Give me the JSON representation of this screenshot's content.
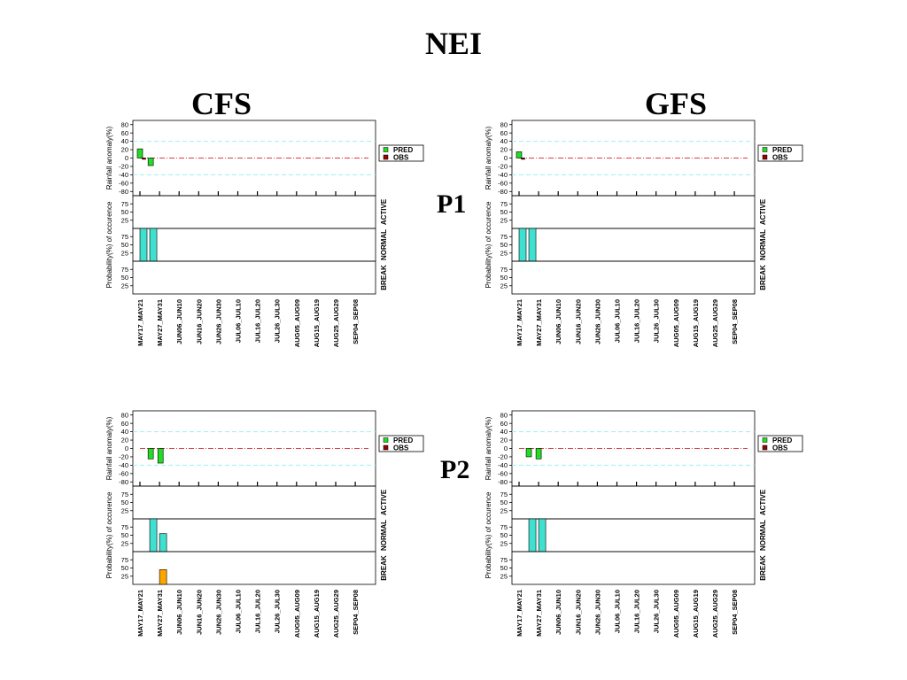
{
  "title": "NEI",
  "columns": [
    "CFS",
    "GFS"
  ],
  "rows": [
    "P1",
    "P2"
  ],
  "colors": {
    "pred": "#22dd22",
    "obs": "#990000",
    "active": "#40e0d0",
    "normal": "#40e0d0",
    "break": "#ffa500",
    "dashed_ref": "#a0eef8",
    "zero_line": "#cc0000"
  },
  "chart_data": [
    {
      "id": "cfs-p1",
      "model": "CFS",
      "period": "P1",
      "type": "bar",
      "ylabel_top": "Rainfall anomaly(%)",
      "ylabel_bottom": "Probability(%) of occurence",
      "yticks_top": [
        "80",
        "60",
        "40",
        "20",
        "0",
        "-20",
        "-40",
        "-60",
        "-80"
      ],
      "ylim_top": [
        -90,
        90
      ],
      "ref_lines": [
        40,
        -40
      ],
      "yticks_bottom": [
        "75",
        "50",
        "25"
      ],
      "categories": [
        "MAY17_MAY21",
        "MAY27_MAY31",
        "JUN06_JUN10",
        "JUN16_JUN20",
        "JUN26_JUN30",
        "JUL06_JUL10",
        "JUL16_JUL20",
        "JUL26_JUL30",
        "AUG05_AUG09",
        "AUG15_AUG19",
        "AUG25_AUG29",
        "SEP04_SEP08"
      ],
      "legend": [
        "PRED",
        "OBS"
      ],
      "prob_labels": [
        "ACTIVE",
        "NORMAL",
        "BREAK"
      ],
      "series": [
        {
          "name": "PRED",
          "bars": [
            {
              "x": 0.0,
              "value": 22
            },
            {
              "x": 0.55,
              "value": -18
            }
          ]
        },
        {
          "name": "OBS",
          "bars": [
            {
              "x": 0.25,
              "value": -3
            }
          ]
        }
      ],
      "probabilities": {
        "active": [],
        "normal": [
          {
            "x": 0.0,
            "value": 100
          },
          {
            "x": 0.5,
            "value": 100
          }
        ],
        "break": []
      }
    },
    {
      "id": "gfs-p1",
      "model": "GFS",
      "period": "P1",
      "type": "bar",
      "ylabel_top": "Rainfall anomaly(%)",
      "ylabel_bottom": "Probability(%) of occurence",
      "yticks_top": [
        "80",
        "60",
        "40",
        "20",
        "0",
        "-20",
        "-40",
        "-60",
        "-80"
      ],
      "ylim_top": [
        -90,
        90
      ],
      "ref_lines": [
        40,
        -40
      ],
      "yticks_bottom": [
        "75",
        "50",
        "25"
      ],
      "categories": [
        "MAY17_MAY21",
        "MAY27_MAY31",
        "JUN06_JUN10",
        "JUN16_JUN20",
        "JUN26_JUN30",
        "JUL06_JUL10",
        "JUL16_JUL20",
        "JUL26_JUL30",
        "AUG05_AUG09",
        "AUG15_AUG19",
        "AUG25_AUG29",
        "SEP04_SEP08"
      ],
      "legend": [
        "PRED",
        "OBS"
      ],
      "prob_labels": [
        "ACTIVE",
        "NORMAL",
        "BREAK"
      ],
      "series": [
        {
          "name": "PRED",
          "bars": [
            {
              "x": 0.0,
              "value": 15
            }
          ]
        },
        {
          "name": "OBS",
          "bars": [
            {
              "x": 0.25,
              "value": -3
            }
          ]
        }
      ],
      "probabilities": {
        "active": [],
        "normal": [
          {
            "x": 0.0,
            "value": 100
          },
          {
            "x": 0.5,
            "value": 100
          }
        ],
        "break": []
      }
    },
    {
      "id": "cfs-p2",
      "model": "CFS",
      "period": "P2",
      "type": "bar",
      "ylabel_top": "Rainfall anomaly(%)",
      "ylabel_bottom": "Probability(%) of occurence",
      "yticks_top": [
        "80",
        "60",
        "40",
        "20",
        "0",
        "-20",
        "-40",
        "-60",
        "-80"
      ],
      "ylim_top": [
        -90,
        90
      ],
      "ref_lines": [
        40,
        -40
      ],
      "yticks_bottom": [
        "75",
        "50",
        "25"
      ],
      "categories": [
        "MAY17_MAY21",
        "MAY27_MAY31",
        "JUN06_JUN10",
        "JUN16_JUN20",
        "JUN26_JUN30",
        "JUL06_JUL10",
        "JUL16_JUL20",
        "JUL26_JUL30",
        "AUG05_AUG09",
        "AUG15_AUG19",
        "AUG25_AUG29",
        "SEP04_SEP08"
      ],
      "legend": [
        "PRED",
        "OBS"
      ],
      "prob_labels": [
        "ACTIVE",
        "NORMAL",
        "BREAK"
      ],
      "series": [
        {
          "name": "PRED",
          "bars": [
            {
              "x": 0.55,
              "value": -25
            },
            {
              "x": 1.05,
              "value": -35
            }
          ]
        },
        {
          "name": "OBS",
          "bars": []
        }
      ],
      "probabilities": {
        "active": [],
        "normal": [
          {
            "x": 0.5,
            "value": 100
          },
          {
            "x": 1.0,
            "value": 55
          }
        ],
        "break": [
          {
            "x": 1.0,
            "value": 45
          }
        ]
      }
    },
    {
      "id": "gfs-p2",
      "model": "GFS",
      "period": "P2",
      "type": "bar",
      "ylabel_top": "Rainfall anomaly(%)",
      "ylabel_bottom": "Probability(%) of occurence",
      "yticks_top": [
        "80",
        "60",
        "40",
        "20",
        "0",
        "-20",
        "-40",
        "-60",
        "-80"
      ],
      "ylim_top": [
        -90,
        90
      ],
      "ref_lines": [
        40,
        -40
      ],
      "yticks_bottom": [
        "75",
        "50",
        "25"
      ],
      "categories": [
        "MAY17_MAY21",
        "MAY27_MAY31",
        "JUN06_JUN10",
        "JUN16_JUN20",
        "JUN26_JUN30",
        "JUL06_JUL10",
        "JUL16_JUL20",
        "JUL26_JUL30",
        "AUG05_AUG09",
        "AUG15_AUG19",
        "AUG25_AUG29",
        "SEP04_SEP08"
      ],
      "legend": [
        "PRED",
        "OBS"
      ],
      "prob_labels": [
        "ACTIVE",
        "NORMAL",
        "BREAK"
      ],
      "series": [
        {
          "name": "PRED",
          "bars": [
            {
              "x": 0.5,
              "value": -20
            },
            {
              "x": 1.0,
              "value": -25
            }
          ]
        },
        {
          "name": "OBS",
          "bars": []
        }
      ],
      "probabilities": {
        "active": [],
        "normal": [
          {
            "x": 0.5,
            "value": 100
          },
          {
            "x": 1.0,
            "value": 100
          }
        ],
        "break": []
      }
    }
  ]
}
